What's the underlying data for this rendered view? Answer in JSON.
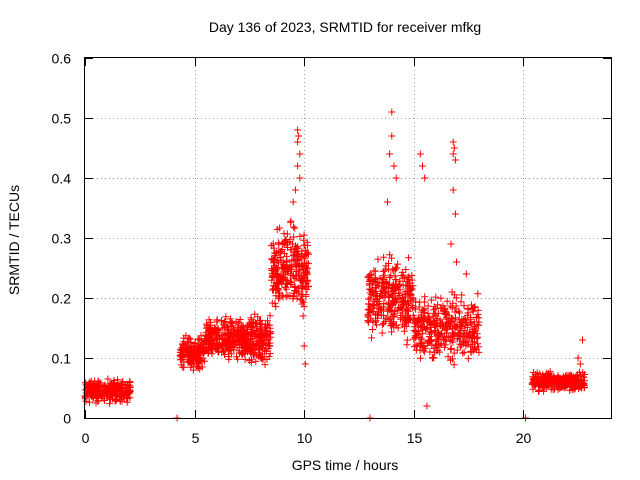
{
  "chart_data": {
    "type": "scatter",
    "title": "Day 136 of 2023, SRMTID for receiver mfkg",
    "xlabel": "GPS time / hours",
    "ylabel": "SRMTID / TECUs",
    "xlim": [
      0,
      24
    ],
    "ylim": [
      0,
      0.6
    ],
    "xticks": [
      0,
      5,
      10,
      15,
      20
    ],
    "xtick_labels": [
      "0",
      "5",
      "10",
      "15",
      "20"
    ],
    "yticks": [
      0,
      0.1,
      0.2,
      0.3,
      0.4,
      0.5,
      0.6
    ],
    "ytick_labels": [
      "0",
      "0.1",
      "0.2",
      "0.3",
      "0.4",
      "0.5",
      "0.6"
    ],
    "grid": true,
    "marker": "+",
    "series_color": "#ff0000",
    "series": [
      {
        "name": "SRMTID",
        "clusters": [
          {
            "x_range": [
              0.0,
              2.1
            ],
            "y_center": 0.045,
            "y_spread": 0.025,
            "count": 260
          },
          {
            "x_range": [
              4.3,
              5.5
            ],
            "y_center": 0.11,
            "y_spread": 0.035,
            "count": 160
          },
          {
            "x_range": [
              5.5,
              7.5
            ],
            "y_center": 0.13,
            "y_spread": 0.045,
            "count": 300
          },
          {
            "x_range": [
              7.5,
              8.5
            ],
            "y_center": 0.13,
            "y_spread": 0.06,
            "count": 140
          },
          {
            "x_range": [
              8.5,
              10.2
            ],
            "y_center": 0.25,
            "y_spread": 0.09,
            "count": 280
          },
          {
            "x_range": [
              12.9,
              15.0
            ],
            "y_center": 0.2,
            "y_spread": 0.09,
            "count": 300
          },
          {
            "x_range": [
              15.0,
              18.0
            ],
            "y_center": 0.15,
            "y_spread": 0.07,
            "count": 340
          },
          {
            "x_range": [
              20.4,
              22.8
            ],
            "y_center": 0.06,
            "y_spread": 0.02,
            "count": 300
          }
        ],
        "points": [
          [
            9.7,
            0.48
          ],
          [
            9.75,
            0.47
          ],
          [
            9.7,
            0.46
          ],
          [
            9.8,
            0.44
          ],
          [
            9.7,
            0.42
          ],
          [
            9.8,
            0.4
          ],
          [
            9.6,
            0.38
          ],
          [
            9.5,
            0.36
          ],
          [
            9.9,
            0.19
          ],
          [
            9.95,
            0.17
          ],
          [
            10.0,
            0.12
          ],
          [
            10.05,
            0.09
          ],
          [
            14.0,
            0.51
          ],
          [
            14.0,
            0.47
          ],
          [
            13.9,
            0.44
          ],
          [
            14.1,
            0.42
          ],
          [
            14.2,
            0.4
          ],
          [
            13.8,
            0.36
          ],
          [
            15.3,
            0.44
          ],
          [
            15.4,
            0.42
          ],
          [
            15.5,
            0.4
          ],
          [
            15.6,
            0.02
          ],
          [
            16.8,
            0.46
          ],
          [
            16.85,
            0.45
          ],
          [
            16.8,
            0.44
          ],
          [
            16.9,
            0.43
          ],
          [
            16.8,
            0.38
          ],
          [
            16.9,
            0.34
          ],
          [
            16.7,
            0.29
          ],
          [
            16.95,
            0.26
          ],
          [
            16.75,
            0.21
          ],
          [
            17.4,
            0.24
          ],
          [
            22.7,
            0.13
          ],
          [
            22.5,
            0.1
          ],
          [
            22.6,
            0.09
          ],
          [
            4.2,
            0.0
          ],
          [
            13.0,
            0.0
          ],
          [
            20.1,
            0.0
          ]
        ]
      }
    ]
  }
}
